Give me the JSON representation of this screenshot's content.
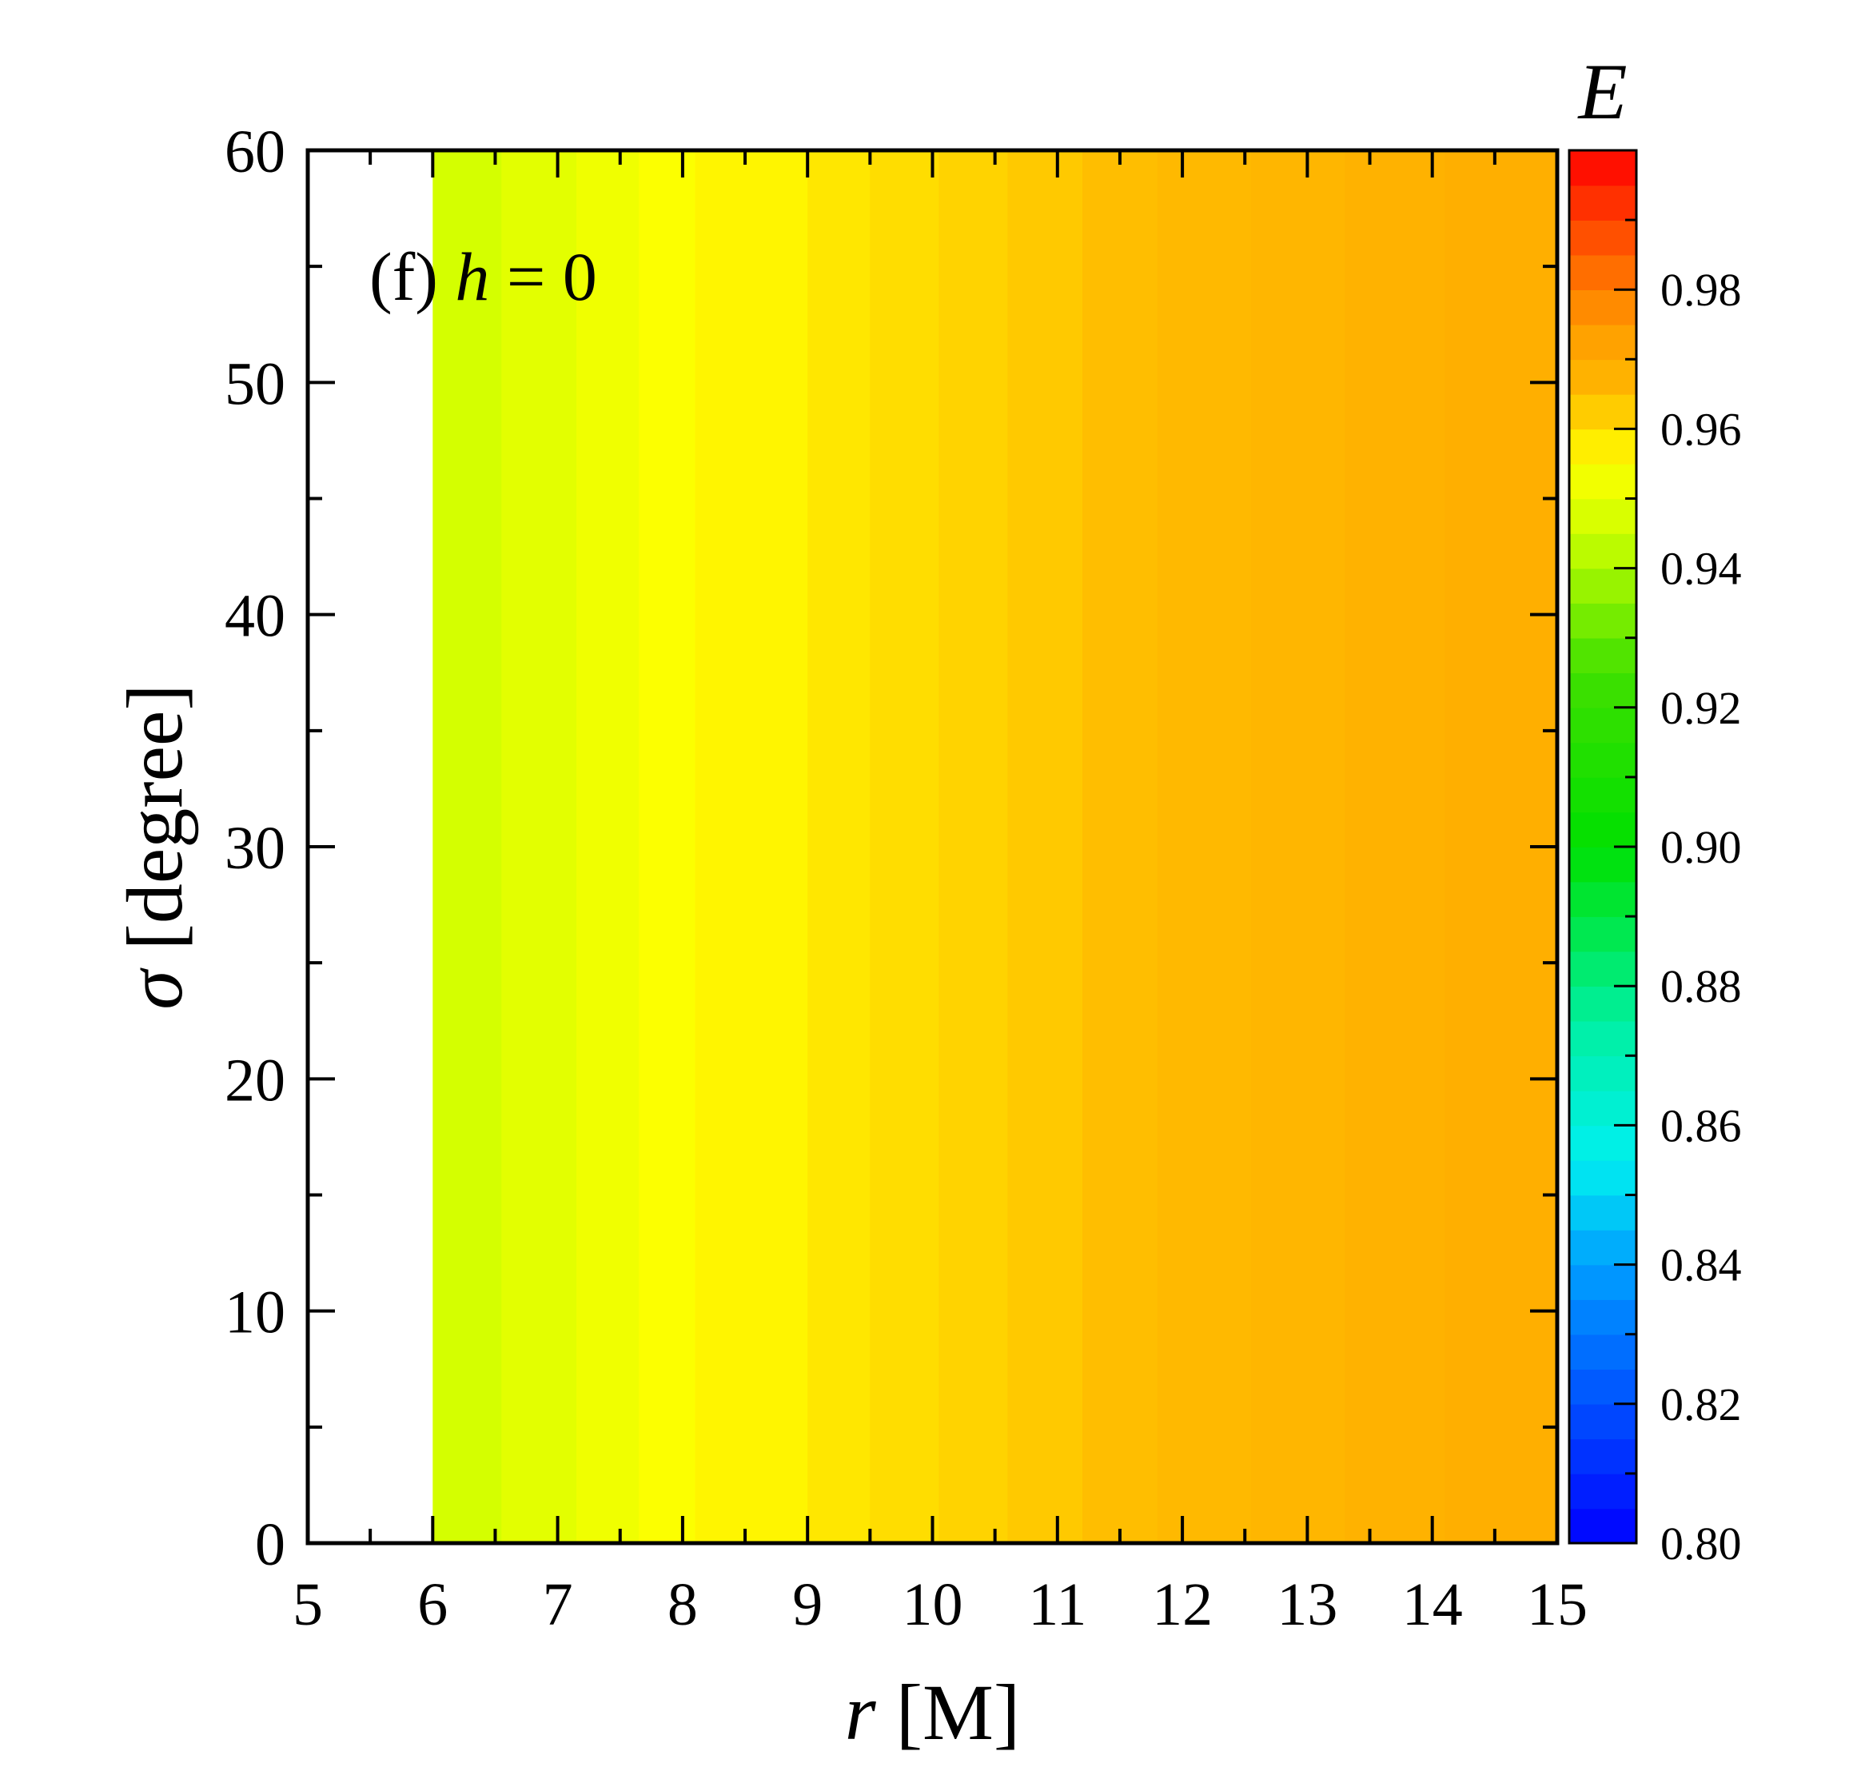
{
  "chart_data": {
    "type": "heatmap",
    "panel_label": {
      "prefix": "(f) ",
      "variable": "h",
      "suffix": " = 0"
    },
    "xlabel": {
      "symbol": "r",
      "unit": "[M]"
    },
    "ylabel": {
      "symbol": "σ",
      "unit": "[degree]"
    },
    "xlim": [
      5,
      15
    ],
    "ylim": [
      0,
      60
    ],
    "x_ticks": [
      "5",
      "6",
      "7",
      "8",
      "9",
      "10",
      "11",
      "12",
      "13",
      "14",
      "15"
    ],
    "y_ticks": [
      "0",
      "10",
      "20",
      "30",
      "40",
      "50",
      "60"
    ],
    "data_x_start": 6,
    "r_bands": [
      {
        "r0": 6.0,
        "r1": 6.55,
        "E": 0.9465
      },
      {
        "r0": 6.55,
        "r1": 7.15,
        "E": 0.9495
      },
      {
        "r0": 7.15,
        "r1": 7.65,
        "E": 0.952
      },
      {
        "r0": 7.65,
        "r1": 8.1,
        "E": 0.9545
      },
      {
        "r0": 8.1,
        "r1": 9.0,
        "E": 0.9565
      },
      {
        "r0": 9.0,
        "r1": 9.5,
        "E": 0.9585
      },
      {
        "r0": 9.5,
        "r1": 10.05,
        "E": 0.96
      },
      {
        "r0": 10.05,
        "r1": 10.6,
        "E": 0.9615
      },
      {
        "r0": 10.6,
        "r1": 11.2,
        "E": 0.963
      },
      {
        "r0": 11.2,
        "r1": 11.8,
        "E": 0.9645
      },
      {
        "r0": 11.8,
        "r1": 12.55,
        "E": 0.9655
      },
      {
        "r0": 12.55,
        "r1": 13.3,
        "E": 0.9665
      },
      {
        "r0": 13.3,
        "r1": 14.1,
        "E": 0.9675
      },
      {
        "r0": 14.1,
        "r1": 15.0,
        "E": 0.9685
      }
    ],
    "colorbar": {
      "title": "E",
      "range": [
        0.8,
        1.0
      ],
      "ticks": [
        "0.80",
        "0.82",
        "0.84",
        "0.86",
        "0.88",
        "0.90",
        "0.92",
        "0.94",
        "0.96",
        "0.98"
      ],
      "levels": 40,
      "colormap_stops": [
        {
          "v": 0.8,
          "color": "#0000ff"
        },
        {
          "v": 0.84,
          "color": "#00a0ff"
        },
        {
          "v": 0.855,
          "color": "#00f0f0"
        },
        {
          "v": 0.875,
          "color": "#00f0a0"
        },
        {
          "v": 0.9,
          "color": "#00e000"
        },
        {
          "v": 0.925,
          "color": "#40e000"
        },
        {
          "v": 0.945,
          "color": "#ccff00"
        },
        {
          "v": 0.955,
          "color": "#ffff00"
        },
        {
          "v": 0.965,
          "color": "#ffbb00"
        },
        {
          "v": 0.975,
          "color": "#ff9900"
        },
        {
          "v": 0.985,
          "color": "#ff6000"
        },
        {
          "v": 1.0,
          "color": "#ff0000"
        }
      ]
    }
  }
}
